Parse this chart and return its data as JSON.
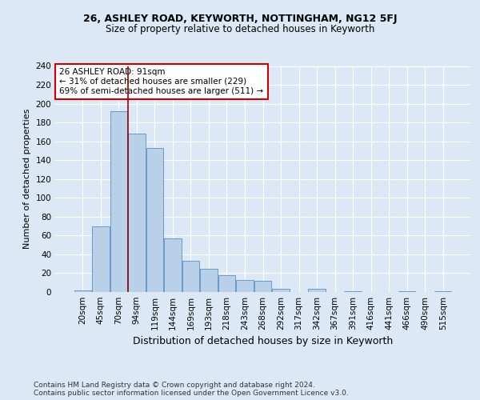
{
  "title1": "26, ASHLEY ROAD, KEYWORTH, NOTTINGHAM, NG12 5FJ",
  "title2": "Size of property relative to detached houses in Keyworth",
  "xlabel": "Distribution of detached houses by size in Keyworth",
  "ylabel": "Number of detached properties",
  "bar_labels": [
    "20sqm",
    "45sqm",
    "70sqm",
    "94sqm",
    "119sqm",
    "144sqm",
    "169sqm",
    "193sqm",
    "218sqm",
    "243sqm",
    "268sqm",
    "292sqm",
    "317sqm",
    "342sqm",
    "367sqm",
    "391sqm",
    "416sqm",
    "441sqm",
    "466sqm",
    "490sqm",
    "515sqm"
  ],
  "bar_values": [
    2,
    70,
    192,
    168,
    153,
    57,
    33,
    25,
    18,
    13,
    12,
    3,
    0,
    3,
    0,
    1,
    0,
    0,
    1,
    0,
    1
  ],
  "bar_color": "#b8d0e8",
  "bar_edge_color": "#6699cc",
  "background_color": "#dce8f5",
  "grid_color": "#ffffff",
  "vline_color": "#990000",
  "vline_x_index": 2.5,
  "annotation_text": "26 ASHLEY ROAD: 91sqm\n← 31% of detached houses are smaller (229)\n69% of semi-detached houses are larger (511) →",
  "annotation_box_color": "#ffffff",
  "annotation_box_edge": "#cc0000",
  "footnote1": "Contains HM Land Registry data © Crown copyright and database right 2024.",
  "footnote2": "Contains public sector information licensed under the Open Government Licence v3.0.",
  "ylim": [
    0,
    240
  ],
  "yticks": [
    0,
    20,
    40,
    60,
    80,
    100,
    120,
    140,
    160,
    180,
    200,
    220,
    240
  ],
  "fig_width": 6.0,
  "fig_height": 5.0,
  "title1_fontsize": 9,
  "title2_fontsize": 8.5,
  "ylabel_fontsize": 8,
  "xlabel_fontsize": 9,
  "xlabel_bold": false,
  "tick_fontsize": 7.5,
  "footnote_fontsize": 6.5,
  "annotation_fontsize": 7.5
}
